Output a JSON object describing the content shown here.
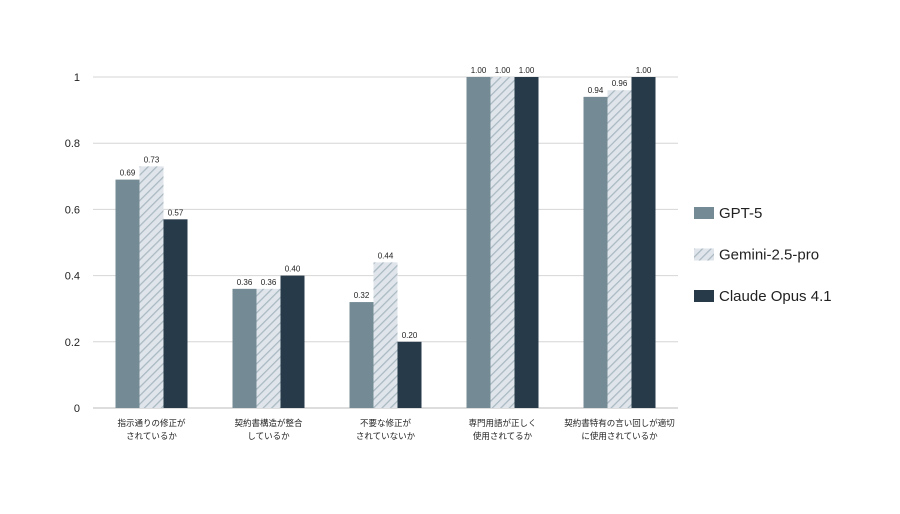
{
  "chart_data": {
    "type": "bar",
    "title": "",
    "xlabel": "",
    "ylabel": "",
    "ylim": [
      0,
      1
    ],
    "yticks": [
      "0",
      "0.2",
      "0.4",
      "0.6",
      "0.8",
      "1"
    ],
    "grid": true,
    "legend_position": "right",
    "categories": [
      [
        "指示通りの修正が",
        "されているか"
      ],
      [
        "契約書構造が整合",
        "しているか"
      ],
      [
        "不要な修正が",
        "されていないか"
      ],
      [
        "専門用語が正しく",
        "使用されてるか"
      ],
      [
        "契約書特有の言い回しが適切",
        "に使用されているか"
      ]
    ],
    "series": [
      {
        "name": "GPT-5",
        "color": "#748b95",
        "pattern": "solid",
        "values": [
          0.69,
          0.36,
          0.32,
          1.0,
          0.94
        ],
        "labels": [
          "0.69",
          "0.36",
          "0.32",
          "1.00",
          "0.94"
        ]
      },
      {
        "name": "Gemini-2.5-pro",
        "color": "#c9d3da",
        "pattern": "hatched",
        "values": [
          0.73,
          0.36,
          0.44,
          1.0,
          0.96
        ],
        "labels": [
          "0.73",
          "0.36",
          "0.44",
          "1.00",
          "0.96"
        ]
      },
      {
        "name": "Claude Opus 4.1",
        "color": "#263a4a",
        "pattern": "solid",
        "values": [
          0.57,
          0.4,
          0.2,
          1.0,
          1.0
        ],
        "labels": [
          "0.57",
          "0.40",
          "0.20",
          "1.00",
          "1.00"
        ]
      }
    ]
  }
}
